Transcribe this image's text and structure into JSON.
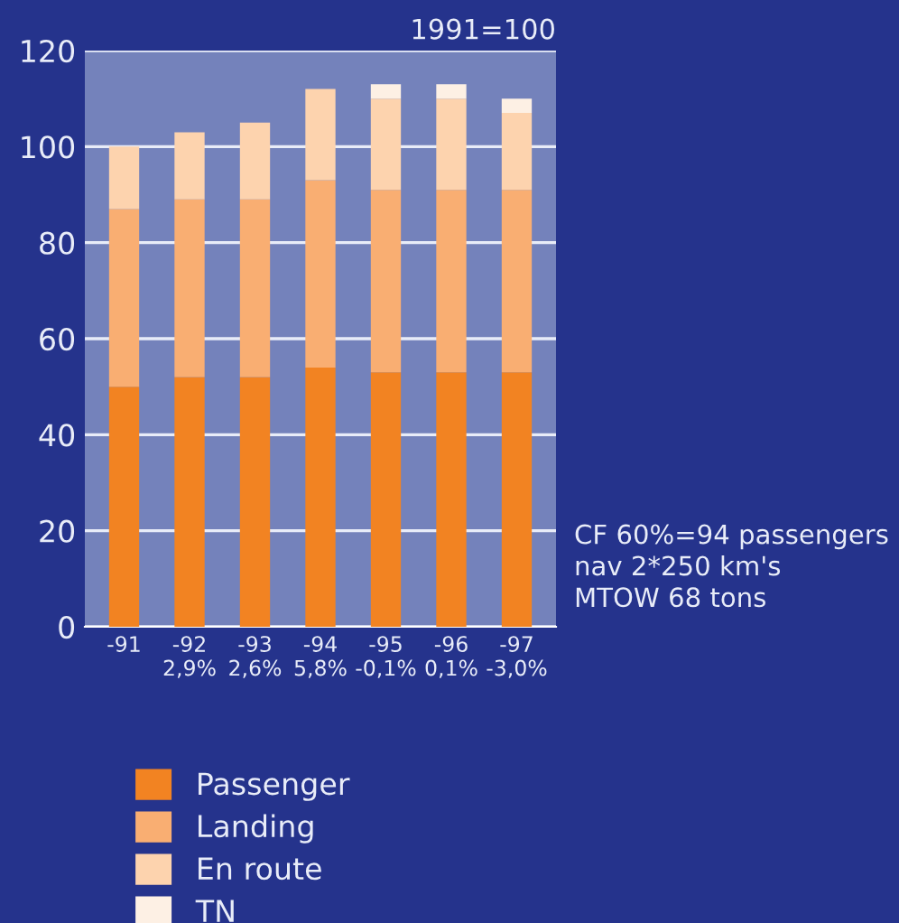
{
  "chart_data": {
    "type": "bar",
    "stacked": true,
    "categories": [
      "-91",
      "-92\n2,9%",
      "-93\n2,6%",
      "-94\n5,8%",
      "-95\n-0,1%",
      "-96\n0,1%",
      "-97\n-3,0%"
    ],
    "series": [
      {
        "name": "Passenger",
        "color": "#f28322",
        "values": [
          50,
          52,
          52,
          54,
          53,
          53,
          53
        ]
      },
      {
        "name": "Landing",
        "color": "#f9ae72",
        "values": [
          37,
          37,
          37,
          39,
          38,
          38,
          38
        ]
      },
      {
        "name": "En route",
        "color": "#fdd3ae",
        "values": [
          13,
          14,
          16,
          19,
          19,
          19,
          16
        ]
      },
      {
        "name": "TN",
        "color": "#fdf0e4",
        "values": [
          0,
          0,
          0,
          0,
          3,
          3,
          3
        ]
      }
    ],
    "ylim": [
      0,
      120
    ],
    "yticks": [
      0,
      20,
      40,
      60,
      80,
      100,
      120
    ],
    "grid": "y",
    "legend": "bottom left",
    "annotations": [
      "1991=100",
      "CF 60%=94 passengers\nnav 2*250 km's\nMTOW 68 tons"
    ]
  }
}
